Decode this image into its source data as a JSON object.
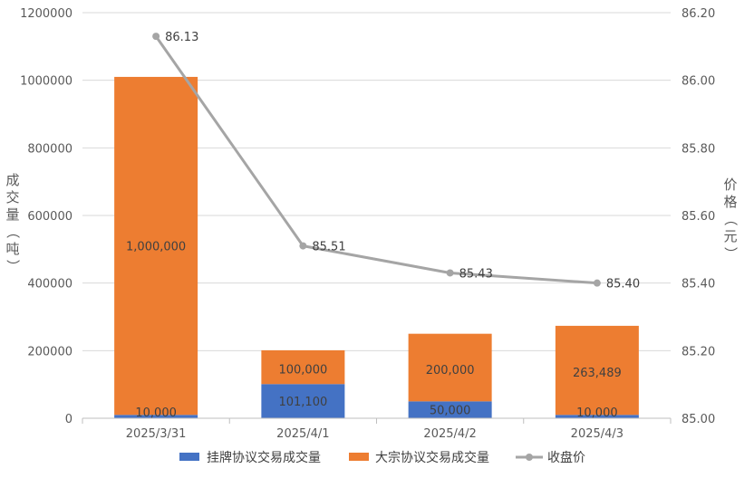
{
  "chart_data": {
    "type": "bar",
    "stacked": true,
    "categories": [
      "2025/3/31",
      "2025/4/1",
      "2025/4/2",
      "2025/4/3"
    ],
    "series": [
      {
        "name": "挂牌协议交易成交量",
        "type": "bar",
        "axis": "left",
        "color": "#4472C4",
        "values": [
          10000,
          101100,
          50000,
          10000
        ],
        "labels": [
          "10,000",
          "101,100",
          "50,000",
          "10,000"
        ]
      },
      {
        "name": "大宗协议交易成交量",
        "type": "bar",
        "axis": "left",
        "color": "#ED7D31",
        "values": [
          1000000,
          100000,
          200000,
          263489
        ],
        "labels": [
          "1,000,000",
          "100,000",
          "200,000",
          "263,489"
        ]
      },
      {
        "name": "收盘价",
        "type": "line",
        "axis": "right",
        "color": "#A5A5A5",
        "values": [
          86.13,
          85.51,
          85.43,
          85.4
        ],
        "labels": [
          "86.13",
          "85.51",
          "85.43",
          "85.40"
        ]
      }
    ],
    "y_left": {
      "label": "成交量（吨）",
      "min": 0,
      "max": 1200000,
      "ticks": [
        "0",
        "200000",
        "400000",
        "600000",
        "800000",
        "1000000",
        "1200000"
      ]
    },
    "y_right": {
      "label": "价格（元）",
      "min": 85.0,
      "max": 86.2,
      "ticks": [
        "85.00",
        "85.20",
        "85.40",
        "85.60",
        "85.80",
        "86.00",
        "86.20"
      ]
    },
    "legend_position": "bottom",
    "grid": true
  }
}
